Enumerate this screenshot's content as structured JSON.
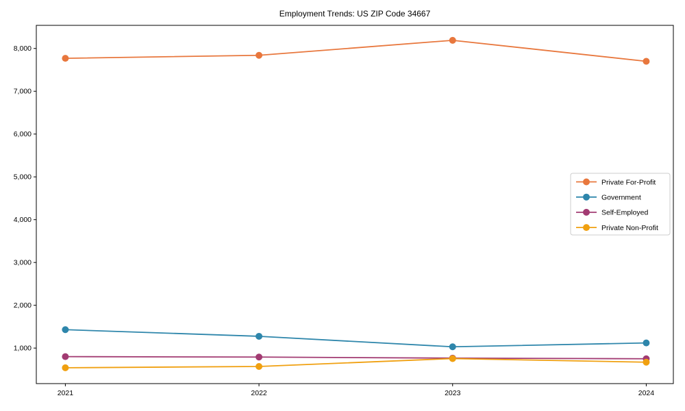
{
  "chart_data": {
    "type": "line",
    "title": "Employment Trends: US ZIP Code 34667",
    "xlabel": "",
    "ylabel": "",
    "x": [
      2021,
      2022,
      2023,
      2024
    ],
    "xticklabels": [
      "2021",
      "2022",
      "2023",
      "2024"
    ],
    "yticks": [
      1000,
      2000,
      3000,
      4000,
      5000,
      6000,
      7000,
      8000
    ],
    "ytick_labels": [
      "1,000",
      "2,000",
      "3,000",
      "4,000",
      "5,000",
      "6,000",
      "7,000",
      "8,000"
    ],
    "xlim": [
      2020.85,
      2024.14
    ],
    "ylim": [
      170,
      8540
    ],
    "grid": false,
    "legend_position": "center right",
    "marker": "circle",
    "series": [
      {
        "name": "Private For-Profit",
        "color": "#E8773D",
        "values": [
          7770,
          7840,
          8190,
          7700
        ]
      },
      {
        "name": "Government",
        "color": "#2E86AB",
        "values": [
          1430,
          1275,
          1030,
          1120
        ]
      },
      {
        "name": "Self-Employed",
        "color": "#A23B72",
        "values": [
          800,
          790,
          765,
          750
        ]
      },
      {
        "name": "Private Non-Profit",
        "color": "#F0A010",
        "values": [
          540,
          570,
          755,
          670
        ]
      }
    ],
    "frame_color": "#000000",
    "legend_border_color": "#cccccc",
    "legend_background": "#ffffff"
  }
}
